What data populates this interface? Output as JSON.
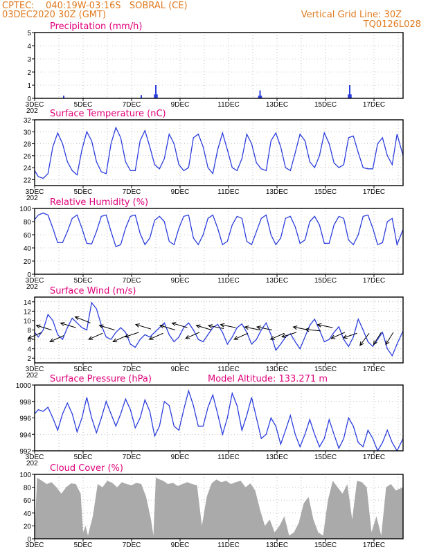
{
  "header": {
    "left_line1": "CPTEC:    040:19W-03:16S   SOBRAL (CE)",
    "left_line2": "03DEC2020 30Z (GMT)",
    "right_line1": "Vertical Grid Line: 30Z",
    "right_line2": "TQ0126L028"
  },
  "colors": {
    "header": "#e07a1f",
    "title": "#e0007a",
    "line": "#2a3ddc",
    "cloud": "#aaaaaa",
    "arrow": "#000000"
  },
  "x_ticks": [
    "3DEC",
    "5DEC",
    "7DEC",
    "9DEC",
    "11DEC",
    "13DEC",
    "15DEC",
    "17DEC"
  ],
  "x_tick_days": [
    3,
    5,
    7,
    9,
    11,
    13,
    15,
    17
  ],
  "x_year_stub": "202",
  "chart_data": [
    {
      "id": "precip",
      "type": "bar",
      "title": "Precipitation (mm/h)",
      "ylim": [
        0,
        5
      ],
      "yticks": [
        0,
        1,
        2,
        3,
        4,
        5
      ],
      "xlim": [
        3,
        18.2
      ],
      "x": [
        3.3,
        4.2,
        5.0,
        6.5,
        7.4,
        7.95,
        8.0,
        8.05,
        8.9,
        10.5,
        12.25,
        12.3,
        12.35,
        14.3,
        15.95,
        16.0,
        16.05,
        17.3
      ],
      "values": [
        0.05,
        0.2,
        0.05,
        0.05,
        0.25,
        0.3,
        1.0,
        0.3,
        0.05,
        0.05,
        0.2,
        0.6,
        0.2,
        0.05,
        0.3,
        1.0,
        0.3,
        0.05
      ]
    },
    {
      "id": "temp",
      "type": "line",
      "title": "Surface Temperature (nC)",
      "ylim": [
        21,
        32
      ],
      "yticks": [
        22,
        24,
        26,
        28,
        30,
        32
      ],
      "xlim": [
        3,
        18.2
      ],
      "x": [
        3.0,
        3.15,
        3.35,
        3.55,
        3.75,
        3.95,
        4.15,
        4.35,
        4.55,
        4.75,
        4.95,
        5.15,
        5.35,
        5.55,
        5.75,
        5.95,
        6.15,
        6.35,
        6.55,
        6.75,
        6.95,
        7.15,
        7.35,
        7.55,
        7.75,
        7.95,
        8.15,
        8.35,
        8.55,
        8.75,
        8.95,
        9.15,
        9.35,
        9.55,
        9.75,
        9.95,
        10.15,
        10.35,
        10.55,
        10.75,
        10.95,
        11.15,
        11.35,
        11.55,
        11.75,
        11.95,
        12.15,
        12.35,
        12.55,
        12.75,
        12.95,
        13.15,
        13.35,
        13.55,
        13.75,
        13.95,
        14.15,
        14.35,
        14.55,
        14.75,
        14.95,
        15.15,
        15.35,
        15.55,
        15.75,
        15.95,
        16.15,
        16.35,
        16.55,
        16.75,
        16.95,
        17.15,
        17.35,
        17.55,
        17.75,
        17.95,
        18.2
      ],
      "values": [
        23.5,
        22.5,
        22.2,
        23.0,
        27.5,
        29.8,
        28.0,
        25.0,
        23.5,
        22.8,
        27.0,
        30.0,
        28.5,
        25.0,
        23.3,
        23.0,
        28.0,
        30.7,
        29.0,
        25.0,
        23.5,
        23.5,
        28.5,
        30.2,
        27.5,
        24.5,
        23.8,
        25.5,
        29.6,
        28.0,
        24.5,
        23.5,
        24.0,
        29.0,
        29.6,
        27.5,
        24.0,
        23.0,
        27.0,
        29.8,
        27.0,
        24.0,
        23.5,
        25.5,
        29.6,
        28.0,
        24.8,
        23.8,
        23.5,
        28.5,
        29.8,
        27.5,
        24.0,
        23.5,
        26.5,
        29.6,
        28.5,
        25.0,
        24.0,
        26.0,
        29.8,
        28.0,
        24.8,
        24.0,
        24.5,
        29.0,
        29.3,
        26.5,
        24.0,
        23.8,
        23.8,
        28.0,
        29.0,
        26.0,
        24.5,
        29.6,
        26.0
      ]
    },
    {
      "id": "rh",
      "type": "line",
      "title": "Relative Humidity (%)",
      "ylim": [
        0,
        100
      ],
      "yticks": [
        0,
        20,
        40,
        60,
        80,
        100
      ],
      "xlim": [
        3,
        18.2
      ],
      "x": [
        3.0,
        3.15,
        3.35,
        3.55,
        3.75,
        3.95,
        4.15,
        4.35,
        4.55,
        4.75,
        4.95,
        5.15,
        5.35,
        5.55,
        5.75,
        5.95,
        6.15,
        6.35,
        6.55,
        6.75,
        6.95,
        7.15,
        7.35,
        7.55,
        7.75,
        7.95,
        8.15,
        8.35,
        8.55,
        8.75,
        8.95,
        9.15,
        9.35,
        9.55,
        9.75,
        9.95,
        10.15,
        10.35,
        10.55,
        10.75,
        10.95,
        11.15,
        11.35,
        11.55,
        11.75,
        11.95,
        12.15,
        12.35,
        12.55,
        12.75,
        12.95,
        13.15,
        13.35,
        13.55,
        13.75,
        13.95,
        14.15,
        14.35,
        14.55,
        14.75,
        14.95,
        15.15,
        15.35,
        15.55,
        15.75,
        15.95,
        16.15,
        16.35,
        16.55,
        16.75,
        16.95,
        17.15,
        17.35,
        17.55,
        17.75,
        17.95,
        18.2
      ],
      "values": [
        83,
        90,
        93,
        90,
        70,
        48,
        48,
        65,
        85,
        90,
        70,
        47,
        46,
        65,
        88,
        90,
        65,
        42,
        45,
        70,
        88,
        90,
        62,
        45,
        55,
        82,
        88,
        80,
        50,
        45,
        70,
        88,
        90,
        55,
        45,
        60,
        85,
        90,
        70,
        45,
        50,
        75,
        88,
        85,
        50,
        45,
        65,
        85,
        90,
        60,
        45,
        55,
        85,
        88,
        72,
        47,
        52,
        80,
        88,
        75,
        47,
        47,
        75,
        88,
        85,
        52,
        45,
        60,
        88,
        90,
        70,
        45,
        48,
        80,
        85,
        45,
        68
      ]
    },
    {
      "id": "wind",
      "type": "line",
      "title": "Surface Wind (m/s)",
      "ylim": [
        1,
        15
      ],
      "yticks": [
        2,
        4,
        6,
        8,
        10,
        12,
        14
      ],
      "xlim": [
        3,
        18.2
      ],
      "x": [
        3.0,
        3.15,
        3.35,
        3.55,
        3.75,
        3.95,
        4.15,
        4.35,
        4.55,
        4.75,
        4.95,
        5.15,
        5.35,
        5.55,
        5.75,
        5.95,
        6.15,
        6.35,
        6.55,
        6.75,
        6.95,
        7.15,
        7.35,
        7.55,
        7.75,
        7.95,
        8.15,
        8.35,
        8.55,
        8.75,
        8.95,
        9.15,
        9.35,
        9.55,
        9.75,
        9.95,
        10.15,
        10.35,
        10.55,
        10.75,
        10.95,
        11.15,
        11.35,
        11.55,
        11.75,
        11.95,
        12.15,
        12.35,
        12.55,
        12.75,
        12.95,
        13.15,
        13.35,
        13.55,
        13.75,
        13.95,
        14.15,
        14.35,
        14.55,
        14.75,
        14.95,
        15.15,
        15.35,
        15.55,
        15.75,
        15.95,
        16.15,
        16.35,
        16.55,
        16.75,
        16.95,
        17.15,
        17.35,
        17.55,
        17.75,
        17.95,
        18.2
      ],
      "values": [
        7.5,
        6.5,
        8.0,
        11.3,
        10.0,
        7.0,
        6.0,
        8.5,
        10.5,
        9.5,
        8.5,
        8.0,
        13.8,
        12.5,
        9.0,
        6.5,
        6.0,
        7.5,
        8.5,
        7.5,
        5.0,
        4.3,
        6.0,
        7.0,
        6.5,
        7.5,
        8.5,
        9.5,
        7.0,
        5.5,
        6.5,
        8.5,
        9.5,
        8.0,
        6.0,
        5.5,
        7.0,
        8.5,
        9.2,
        7.5,
        5.0,
        6.5,
        8.5,
        9.3,
        7.5,
        5.0,
        6.0,
        8.0,
        9.5,
        7.0,
        3.7,
        5.0,
        6.5,
        7.2,
        5.5,
        4.0,
        6.5,
        9.0,
        10.3,
        8.0,
        5.5,
        6.0,
        7.5,
        8.7,
        6.0,
        4.5,
        6.5,
        10.3,
        8.0,
        5.5,
        4.5,
        6.0,
        7.5,
        4.0,
        2.5,
        5.0,
        7.8
      ]
    },
    {
      "id": "pressure",
      "type": "line",
      "title": "Surface Pressure (hPa)",
      "annotation": "Model Altitude: 133.271 m",
      "ylim": [
        992,
        1000
      ],
      "yticks": [
        992,
        994,
        996,
        998,
        1000
      ],
      "xlim": [
        3,
        18.2
      ],
      "x": [
        3.0,
        3.15,
        3.35,
        3.55,
        3.75,
        3.95,
        4.15,
        4.35,
        4.55,
        4.75,
        4.95,
        5.15,
        5.35,
        5.55,
        5.75,
        5.95,
        6.15,
        6.35,
        6.55,
        6.75,
        6.95,
        7.15,
        7.35,
        7.55,
        7.75,
        7.95,
        8.15,
        8.35,
        8.55,
        8.75,
        8.95,
        9.15,
        9.35,
        9.55,
        9.75,
        9.95,
        10.15,
        10.35,
        10.55,
        10.75,
        10.95,
        11.15,
        11.35,
        11.55,
        11.75,
        11.95,
        12.15,
        12.35,
        12.55,
        12.75,
        12.95,
        13.15,
        13.35,
        13.55,
        13.75,
        13.95,
        14.15,
        14.35,
        14.55,
        14.75,
        14.95,
        15.15,
        15.35,
        15.55,
        15.75,
        15.95,
        16.15,
        16.35,
        16.55,
        16.75,
        16.95,
        17.15,
        17.35,
        17.55,
        17.75,
        17.95,
        18.2
      ],
      "values": [
        996.5,
        997.0,
        996.8,
        997.3,
        996.0,
        994.5,
        996.5,
        997.8,
        996.5,
        994.3,
        996.0,
        998.5,
        996.0,
        994.2,
        996.0,
        998.0,
        996.5,
        995.0,
        996.5,
        998.3,
        997.0,
        994.8,
        996.0,
        998.2,
        996.8,
        993.8,
        995.0,
        998.0,
        997.5,
        995.0,
        994.5,
        997.0,
        999.3,
        997.5,
        995.0,
        995.0,
        997.3,
        998.8,
        996.5,
        994.0,
        996.0,
        999.0,
        997.5,
        994.5,
        996.3,
        998.5,
        996.0,
        993.5,
        994.0,
        996.0,
        995.0,
        992.8,
        994.5,
        996.3,
        994.0,
        992.5,
        994.0,
        995.8,
        994.0,
        992.5,
        993.5,
        995.8,
        994.0,
        992.3,
        993.5,
        996.0,
        995.0,
        993.0,
        992.5,
        994.5,
        993.5,
        992.0,
        993.0,
        994.5,
        993.0,
        992.0,
        993.5
      ]
    },
    {
      "id": "cloud",
      "type": "area",
      "title": "Cloud Cover (%)",
      "ylim": [
        0,
        100
      ],
      "yticks": [
        0,
        20,
        40,
        60,
        80,
        100
      ],
      "xlim": [
        3,
        18.2
      ],
      "x": [
        3.0,
        3.1,
        3.3,
        3.5,
        3.7,
        3.9,
        4.1,
        4.3,
        4.5,
        4.7,
        4.9,
        5.0,
        5.1,
        5.2,
        5.4,
        5.6,
        5.8,
        6.0,
        6.2,
        6.4,
        6.6,
        6.8,
        7.0,
        7.2,
        7.4,
        7.6,
        7.8,
        7.9,
        8.0,
        8.1,
        8.3,
        8.5,
        8.7,
        8.9,
        9.1,
        9.3,
        9.5,
        9.7,
        9.9,
        10.1,
        10.3,
        10.5,
        10.7,
        10.9,
        11.1,
        11.3,
        11.5,
        11.7,
        11.9,
        12.1,
        12.3,
        12.5,
        12.7,
        12.9,
        13.1,
        13.3,
        13.5,
        13.7,
        13.9,
        14.1,
        14.3,
        14.5,
        14.7,
        14.9,
        15.1,
        15.3,
        15.5,
        15.7,
        15.9,
        16.1,
        16.3,
        16.5,
        16.7,
        16.9,
        17.1,
        17.3,
        17.5,
        17.7,
        17.9,
        18.2
      ],
      "values": [
        5,
        95,
        90,
        85,
        88,
        80,
        70,
        80,
        86,
        85,
        70,
        10,
        20,
        5,
        35,
        85,
        80,
        90,
        87,
        80,
        88,
        85,
        83,
        87,
        85,
        65,
        30,
        5,
        95,
        93,
        90,
        85,
        87,
        82,
        85,
        88,
        85,
        83,
        20,
        65,
        86,
        92,
        88,
        90,
        85,
        88,
        90,
        80,
        86,
        75,
        45,
        20,
        30,
        10,
        20,
        35,
        5,
        10,
        25,
        55,
        65,
        30,
        10,
        5,
        60,
        90,
        80,
        70,
        85,
        30,
        90,
        88,
        80,
        10,
        35,
        5,
        80,
        85,
        75,
        80
      ]
    }
  ],
  "wind_arrows": {
    "x": [
      3.3,
      3.7,
      4.2,
      4.7,
      5.3,
      5.8,
      6.3,
      6.8,
      7.3,
      7.8,
      8.3,
      8.8,
      9.3,
      9.8,
      10.3,
      10.8,
      11.3,
      11.8,
      12.3,
      12.8,
      13.3,
      13.8,
      14.3,
      14.8,
      15.3,
      15.8,
      16.3,
      16.8,
      17.3,
      17.8
    ],
    "y": [
      7.5,
      8.0,
      6.8,
      8.5,
      9.5,
      7.3,
      8.0,
      6.8,
      7.5,
      8.2,
      7.3,
      8.0,
      8.5,
      7.5,
      8.0,
      8.3,
      8.5,
      7.3,
      8.0,
      8.0,
      7.3,
      7.5,
      8.0,
      7.8,
      8.5,
      7.5,
      7.3,
      7.3,
      7.5,
      7.5
    ],
    "u": [
      -0.9,
      -1.0,
      -0.9,
      -1.0,
      -1.0,
      -0.9,
      -1.0,
      -0.9,
      -0.9,
      -1.0,
      -0.9,
      -1.0,
      -1.0,
      -0.9,
      -1.0,
      -1.0,
      -1.0,
      -0.9,
      -1.0,
      -1.0,
      -0.9,
      -0.95,
      -1.0,
      -1.0,
      -1.0,
      -0.9,
      -0.9,
      -0.6,
      -0.5,
      -0.5
    ],
    "v": [
      -0.4,
      0.3,
      -0.4,
      0.3,
      0.4,
      -0.4,
      0.3,
      -0.4,
      -0.3,
      0.3,
      -0.4,
      0.3,
      0.3,
      -0.4,
      0.3,
      0.2,
      0.2,
      -0.4,
      0.2,
      0.2,
      -0.4,
      -0.3,
      0.2,
      0.1,
      0.2,
      -0.4,
      -0.3,
      -0.8,
      -0.8,
      -0.8
    ]
  }
}
